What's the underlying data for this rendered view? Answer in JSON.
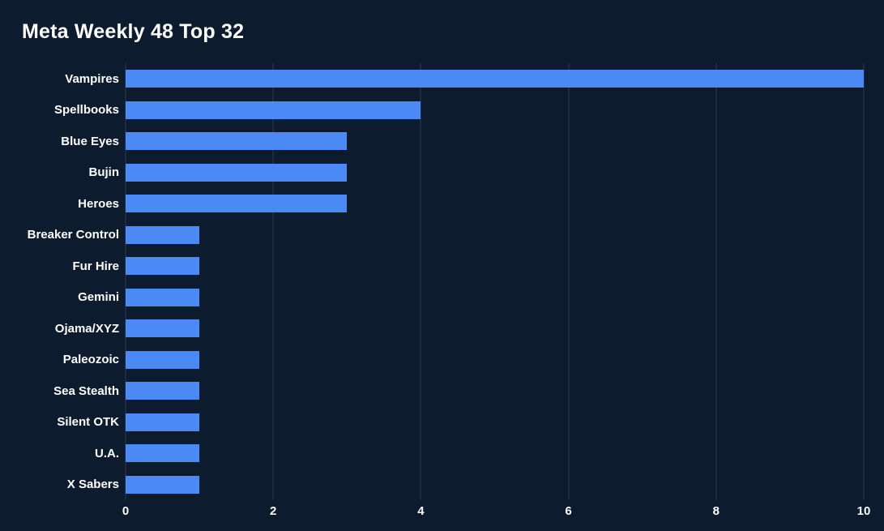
{
  "chart_data": {
    "type": "bar",
    "orientation": "horizontal",
    "title": "Meta Weekly 48 Top 32",
    "categories": [
      "Vampires",
      "Spellbooks",
      "Blue Eyes",
      "Bujin",
      "Heroes",
      "Breaker Control",
      "Fur Hire",
      "Gemini",
      "Ojama/XYZ",
      "Paleozoic",
      "Sea Stealth",
      "Silent OTK",
      "U.A.",
      "X Sabers"
    ],
    "values": [
      10,
      4,
      3,
      3,
      3,
      1,
      1,
      1,
      1,
      1,
      1,
      1,
      1,
      1
    ],
    "xlabel": "",
    "ylabel": "",
    "xlim": [
      0,
      10
    ],
    "x_ticks": [
      0,
      2,
      4,
      6,
      8,
      10
    ],
    "grid": "vertical",
    "legend": "none",
    "colors": {
      "background": "#0d1b2e",
      "bar": "#4b89f4",
      "gridline": "#2b3c52",
      "text": "#ffffff"
    }
  }
}
